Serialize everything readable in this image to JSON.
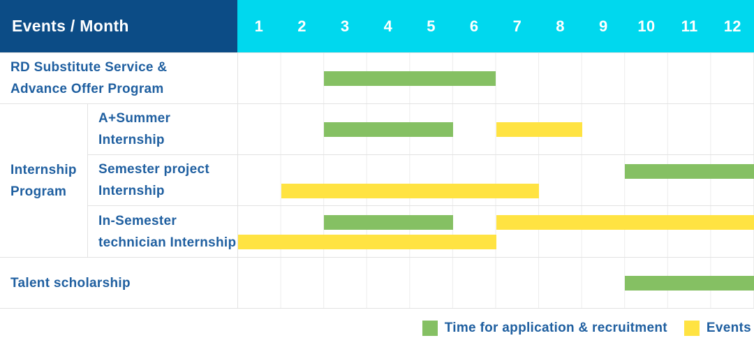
{
  "colors": {
    "header_bg": "#0c4c86",
    "months_bg": "#00d8ee",
    "label_blue": "#1f5fa0",
    "grid_line": "#e2e2e2",
    "month_gridline": "#ececec",
    "green": "#85c063",
    "yellow": "#ffe342"
  },
  "header": {
    "title": "Events / Month",
    "months": [
      "1",
      "2",
      "3",
      "4",
      "5",
      "6",
      "7",
      "8",
      "9",
      "10",
      "11",
      "12"
    ]
  },
  "legend": {
    "items": [
      {
        "color_key": "green",
        "label": "Time for application & recruitment"
      },
      {
        "color_key": "yellow",
        "label": "Events"
      }
    ]
  },
  "chart_data": {
    "type": "bar",
    "variant": "gantt",
    "title": "Events / Month",
    "x_axis": {
      "label": "Month",
      "ticks": [
        1,
        2,
        3,
        4,
        5,
        6,
        7,
        8,
        9,
        10,
        11,
        12
      ],
      "range": [
        1,
        12
      ]
    },
    "legend": [
      "Time for application & recruitment",
      "Events"
    ],
    "legend_position": "bottom-right",
    "grid": true,
    "group_label": "Internship Program",
    "group_label_lines": [
      "Internship",
      "Program"
    ],
    "rows": [
      {
        "label": "RD Substitute Service & Advance Offer Program",
        "label_lines": [
          "RD Substitute Service &",
          "Advance Offer Program"
        ],
        "group": "",
        "bars": [
          {
            "series": "Time for application & recruitment",
            "color": "green",
            "start_month": 3,
            "end_month": 6,
            "lane": "center"
          }
        ]
      },
      {
        "label": "A+Summer Internship",
        "label_lines": [
          "A+Summer",
          "Internship"
        ],
        "group": "Internship Program",
        "bars": [
          {
            "series": "Time for application & recruitment",
            "color": "green",
            "start_month": 3,
            "end_month": 5,
            "lane": "center"
          },
          {
            "series": "Events",
            "color": "yellow",
            "start_month": 7,
            "end_month": 8,
            "lane": "center"
          }
        ]
      },
      {
        "label": "Semester project Internship",
        "label_lines": [
          "Semester project",
          "Internship"
        ],
        "group": "Internship Program",
        "bars": [
          {
            "series": "Time for application & recruitment",
            "color": "green",
            "start_month": 10,
            "end_month": 12,
            "lane": "upper"
          },
          {
            "series": "Events",
            "color": "yellow",
            "start_month": 2,
            "end_month": 7,
            "lane": "lower"
          }
        ]
      },
      {
        "label": "In-Semester technician Internship",
        "label_lines": [
          "In-Semester",
          "technician Internship"
        ],
        "group": "Internship Program",
        "bars": [
          {
            "series": "Time for application & recruitment",
            "color": "green",
            "start_month": 3,
            "end_month": 5,
            "lane": "upper"
          },
          {
            "series": "Events",
            "color": "yellow",
            "start_month": 7,
            "end_month": 12,
            "lane": "upper"
          },
          {
            "series": "Events",
            "color": "yellow",
            "start_month": 1,
            "end_month": 6,
            "lane": "lower"
          }
        ]
      },
      {
        "label": "Talent scholarship",
        "label_lines": [
          "Talent scholarship"
        ],
        "group": "",
        "bars": [
          {
            "series": "Time for application & recruitment",
            "color": "green",
            "start_month": 10,
            "end_month": 12,
            "lane": "center"
          }
        ]
      }
    ]
  }
}
